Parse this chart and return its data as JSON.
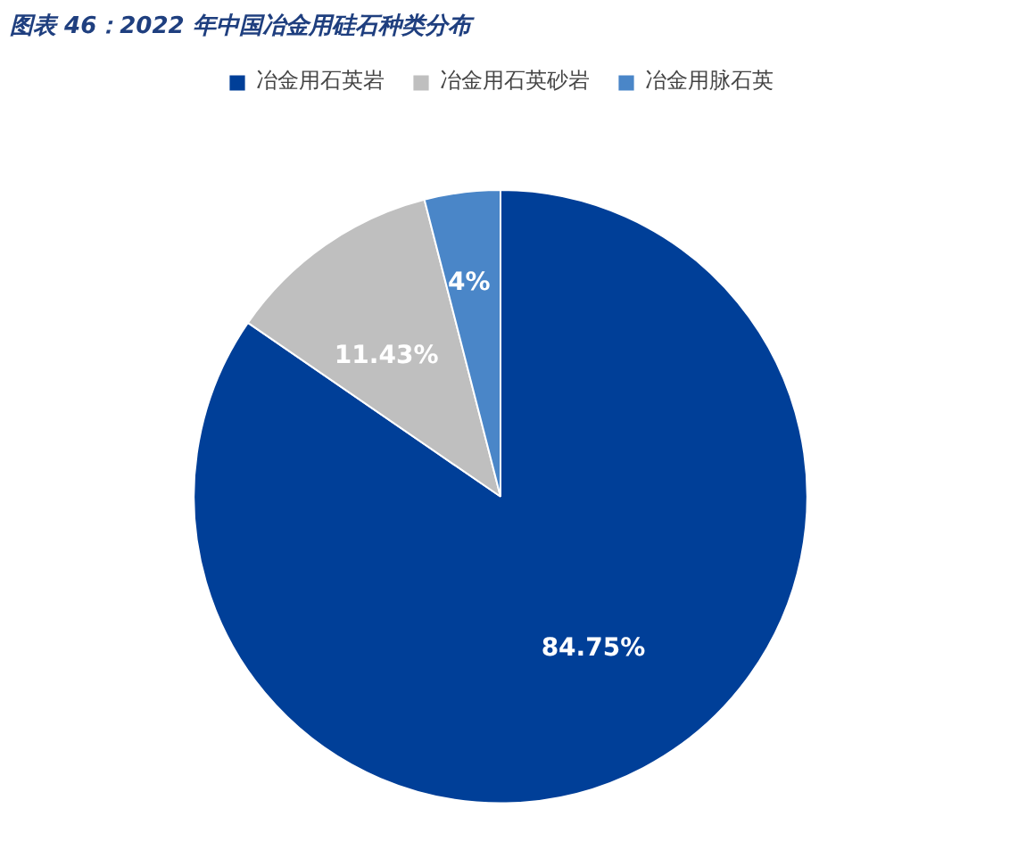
{
  "chart_data": {
    "type": "pie",
    "title": "图表 46：2022 年中国冶金用硅石种类分布",
    "categories": [
      "冶金用石英岩",
      "冶金用石英砂岩",
      "冶金用脉石英"
    ],
    "values": [
      84.75,
      11.43,
      4
    ],
    "value_labels": [
      "84.75%",
      "11.43%",
      "4%"
    ],
    "colors": [
      "#003f98",
      "#bfbfbf",
      "#4a86c8"
    ],
    "legend": "top"
  }
}
